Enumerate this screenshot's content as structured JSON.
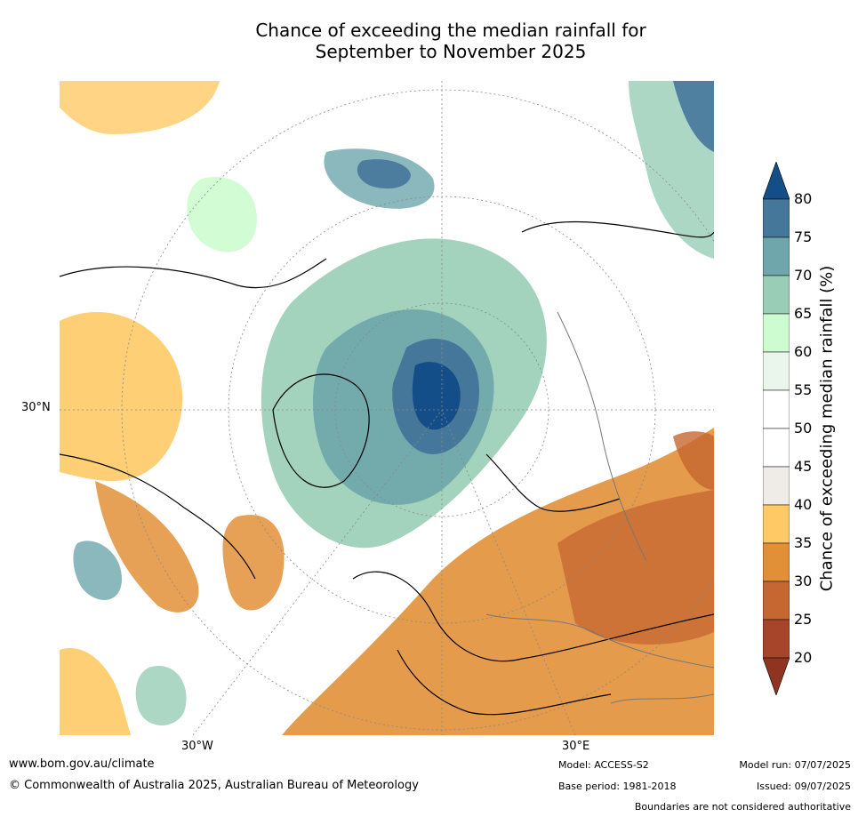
{
  "title": {
    "line1": "Chance of exceeding the median rainfall for",
    "line2": "September to November 2025"
  },
  "map": {
    "lat_label": "30°N",
    "lon_labels": [
      "30°W",
      "30°E"
    ]
  },
  "colorbar": {
    "label": "Chance of exceeding median rainfall (%)",
    "ticks": [
      "80",
      "75",
      "70",
      "65",
      "60",
      "55",
      "50",
      "45",
      "40",
      "35",
      "30",
      "25",
      "20"
    ],
    "colors": {
      "above80": "#134e88",
      "c75": "#45779b",
      "c70": "#6ea6ab",
      "c65": "#99cdb6",
      "c60": "#ccfccf",
      "c55": "#eaf5eb",
      "c50": "#ffffff",
      "c45": "#ffffff",
      "c40": "#efece8",
      "c35": "#ffca66",
      "c30": "#e29038",
      "c25": "#c66630",
      "c20": "#a6452a",
      "below20": "#8e3420"
    }
  },
  "footer": {
    "website": "www.bom.gov.au/climate",
    "copyright": "© Commonwealth of Australia 2025, Australian Bureau of Meteorology",
    "model": "Model: ACCESS-S2",
    "base_period": "Base period: 1981-2018",
    "model_run": "Model run: 07/07/2025",
    "issued": "Issued: 09/07/2025",
    "disclaimer": "Boundaries are not considered authoritative"
  }
}
